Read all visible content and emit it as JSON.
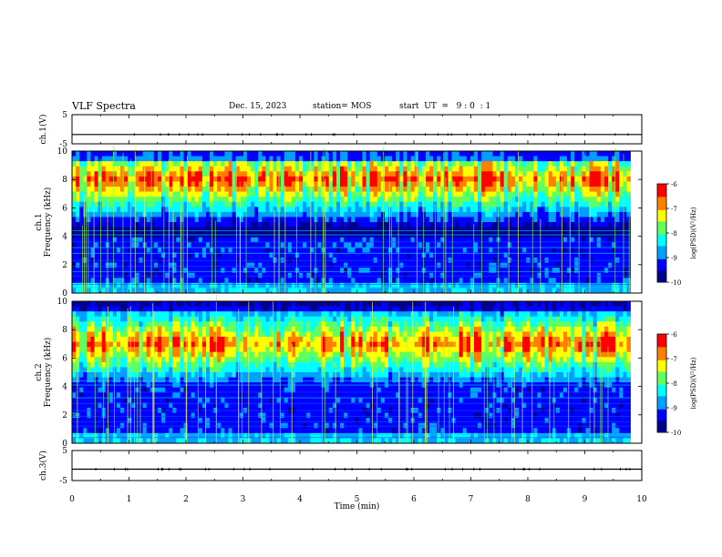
{
  "header": {
    "title": "VLF Spectra",
    "date": "Dec. 15, 2023",
    "station": "station= MOS",
    "start": "start  UT  =   9 : 0  : 1"
  },
  "chart_data": [
    {
      "type": "line",
      "name": "ch1-voltage",
      "ylabel": "ch.1(V)",
      "xlim": [
        0,
        10
      ],
      "ylim": [
        -5,
        5
      ],
      "yticks": [
        "5",
        "-5"
      ],
      "x": [
        0,
        10
      ],
      "values": [
        -1.8,
        -1.8
      ]
    },
    {
      "type": "heatmap",
      "name": "ch1-spectrogram",
      "ylabel": "ch.1\nFrequency (kHz)",
      "xlim": [
        0,
        10
      ],
      "ylim": [
        0,
        10
      ],
      "data_end_min": 9.8,
      "yticks": [
        "0",
        "2",
        "4",
        "6",
        "8",
        "10"
      ],
      "band_center_khz": 8.0,
      "colorbar": {
        "label": "log(PSD)(V²/Hz)",
        "range": [
          -10,
          -6
        ],
        "ticks": [
          "-6",
          "-7",
          "-8",
          "-9",
          "-10"
        ]
      }
    },
    {
      "type": "heatmap",
      "name": "ch2-spectrogram",
      "ylabel": "ch.2\nFrequency (kHz)",
      "xlim": [
        0,
        10
      ],
      "ylim": [
        0,
        10
      ],
      "data_end_min": 9.8,
      "yticks": [
        "0",
        "2",
        "4",
        "6",
        "8",
        "10"
      ],
      "band_center_khz": 7.0,
      "colorbar": {
        "label": "log(PSD)(V²/Hz)",
        "range": [
          -10,
          -6
        ],
        "ticks": [
          "-6",
          "-7",
          "-8",
          "-9",
          "-10"
        ]
      }
    },
    {
      "type": "line",
      "name": "ch3-voltage",
      "ylabel": "ch.3(V)",
      "xlabel": "Time  (min)",
      "xlim": [
        0,
        10
      ],
      "ylim": [
        -5,
        5
      ],
      "yticks": [
        "5",
        "-5"
      ],
      "xticks": [
        "0",
        "1",
        "2",
        "3",
        "4",
        "5",
        "6",
        "7",
        "8",
        "9",
        "10"
      ],
      "x": [
        0,
        10
      ],
      "values": [
        -1.2,
        -1.2
      ]
    }
  ],
  "colors": {
    "colormap": [
      "#000090",
      "#0000ff",
      "#00a0ff",
      "#00ffff",
      "#60ff60",
      "#ffff00",
      "#ff8000",
      "#ff0000"
    ],
    "axis": "#000000"
  }
}
